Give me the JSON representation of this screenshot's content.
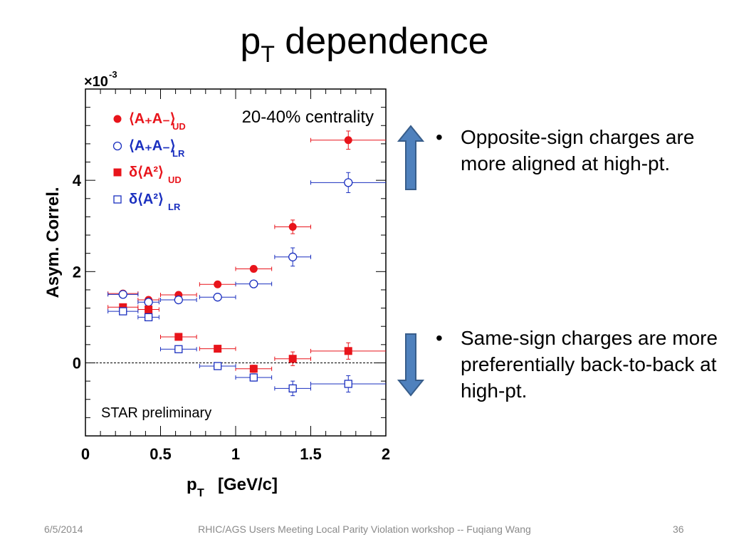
{
  "slide": {
    "title_main": "p",
    "title_sub": "T",
    "title_rest": " dependence",
    "bullets": [
      "Opposite-sign charges are more aligned at high-pt.",
      "Same-sign charges are more preferentially back-to-back at high-pt."
    ],
    "bullet_glyph": "•",
    "footer": {
      "date": "6/5/2014",
      "center": "RHIC/AGS Users Meeting Local Parity Violation workshop -- Fuqiang Wang",
      "page": "36"
    },
    "arrow_color": "#4f81bd"
  },
  "chart_data": {
    "type": "scatter",
    "exponent_label": "×10",
    "exponent_power": "-3",
    "ylabel": "Asym. Correl.",
    "xlabel_main": "p",
    "xlabel_sub": "T",
    "xlabel_unit": "[GeV/c]",
    "xlim": [
      0,
      2
    ],
    "ylim": [
      -1.6,
      6.0
    ],
    "xticks": [
      0,
      0.5,
      1,
      1.5,
      2
    ],
    "xtick_labels": [
      "0",
      "0.5",
      "1",
      "1.5",
      "2"
    ],
    "yticks": [
      0,
      2,
      4
    ],
    "ytick_labels": [
      "0",
      "2",
      "4"
    ],
    "annotation_top": "20-40% centrality",
    "annotation_bottom": "STAR preliminary",
    "zero_line": true,
    "series": [
      {
        "name": "⟨A₊A₋⟩UD",
        "legend_main": "⟨A₊A₋⟩",
        "legend_sub": "UD",
        "color": "#e8141b",
        "marker": "filled-circle",
        "points": [
          {
            "x": 0.25,
            "y": 1.52,
            "xerr": 0.1,
            "yerr": 0.05
          },
          {
            "x": 0.42,
            "y": 1.38,
            "xerr": 0.07,
            "yerr": 0.05
          },
          {
            "x": 0.62,
            "y": 1.49,
            "xerr": 0.12,
            "yerr": 0.05
          },
          {
            "x": 0.88,
            "y": 1.72,
            "xerr": 0.12,
            "yerr": 0.05
          },
          {
            "x": 1.12,
            "y": 2.06,
            "xerr": 0.12,
            "yerr": 0.07
          },
          {
            "x": 1.38,
            "y": 2.98,
            "xerr": 0.12,
            "yerr": 0.15
          },
          {
            "x": 1.75,
            "y": 4.88,
            "xerr": 0.25,
            "yerr": 0.2
          }
        ]
      },
      {
        "name": "⟨A₊A₋⟩LR",
        "legend_main": "⟨A₊A₋⟩",
        "legend_sub": "LR",
        "color": "#1a2fbf",
        "marker": "open-circle",
        "points": [
          {
            "x": 0.25,
            "y": 1.5,
            "xerr": 0.1,
            "yerr": 0.05
          },
          {
            "x": 0.42,
            "y": 1.33,
            "xerr": 0.07,
            "yerr": 0.05
          },
          {
            "x": 0.62,
            "y": 1.38,
            "xerr": 0.12,
            "yerr": 0.05
          },
          {
            "x": 0.88,
            "y": 1.44,
            "xerr": 0.12,
            "yerr": 0.05
          },
          {
            "x": 1.12,
            "y": 1.73,
            "xerr": 0.12,
            "yerr": 0.07
          },
          {
            "x": 1.38,
            "y": 2.32,
            "xerr": 0.12,
            "yerr": 0.2
          },
          {
            "x": 1.75,
            "y": 3.95,
            "xerr": 0.25,
            "yerr": 0.22
          }
        ]
      },
      {
        "name": "δ⟨A²⟩UD",
        "legend_main": "δ⟨A²⟩",
        "legend_sub": "UD",
        "color": "#e8141b",
        "marker": "filled-square",
        "points": [
          {
            "x": 0.25,
            "y": 1.22,
            "xerr": 0.1,
            "yerr": 0.05
          },
          {
            "x": 0.42,
            "y": 1.17,
            "xerr": 0.07,
            "yerr": 0.05
          },
          {
            "x": 0.62,
            "y": 0.57,
            "xerr": 0.12,
            "yerr": 0.05
          },
          {
            "x": 0.88,
            "y": 0.31,
            "xerr": 0.12,
            "yerr": 0.05
          },
          {
            "x": 1.12,
            "y": -0.13,
            "xerr": 0.12,
            "yerr": 0.08
          },
          {
            "x": 1.38,
            "y": 0.09,
            "xerr": 0.12,
            "yerr": 0.15
          },
          {
            "x": 1.75,
            "y": 0.26,
            "xerr": 0.25,
            "yerr": 0.18
          }
        ]
      },
      {
        "name": "δ⟨A²⟩LR",
        "legend_main": "δ⟨A²⟩",
        "legend_sub": "LR",
        "color": "#1a2fbf",
        "marker": "open-square",
        "points": [
          {
            "x": 0.25,
            "y": 1.13,
            "xerr": 0.1,
            "yerr": 0.05
          },
          {
            "x": 0.42,
            "y": 1.0,
            "xerr": 0.07,
            "yerr": 0.05
          },
          {
            "x": 0.62,
            "y": 0.3,
            "xerr": 0.12,
            "yerr": 0.05
          },
          {
            "x": 0.88,
            "y": -0.07,
            "xerr": 0.12,
            "yerr": 0.05
          },
          {
            "x": 1.12,
            "y": -0.32,
            "xerr": 0.12,
            "yerr": 0.08
          },
          {
            "x": 1.38,
            "y": -0.56,
            "xerr": 0.12,
            "yerr": 0.16
          },
          {
            "x": 1.75,
            "y": -0.46,
            "xerr": 0.25,
            "yerr": 0.18
          }
        ]
      }
    ]
  }
}
